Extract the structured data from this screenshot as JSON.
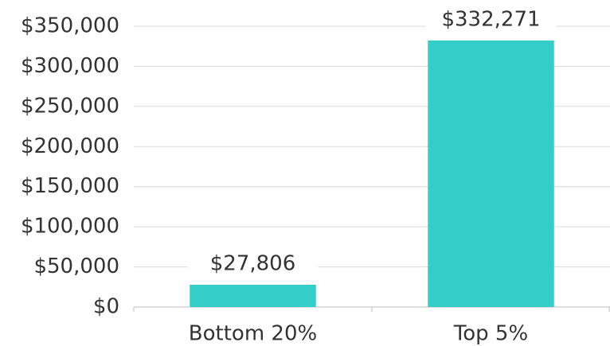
{
  "chart_data": {
    "type": "bar",
    "categories": [
      "Bottom 20%",
      "Top 5%"
    ],
    "values": [
      27806,
      332271
    ],
    "value_labels": [
      "$27,806",
      "$332,271"
    ],
    "color": "#33cec7",
    "ylim": [
      0,
      350000
    ],
    "yticks": [
      {
        "value": 0,
        "label": "$0"
      },
      {
        "value": 50000,
        "label": "$50,000"
      },
      {
        "value": 100000,
        "label": "$100,000"
      },
      {
        "value": 150000,
        "label": "$150,000"
      },
      {
        "value": 200000,
        "label": "$200,000"
      },
      {
        "value": 250000,
        "label": "$250,000"
      },
      {
        "value": 300000,
        "label": "$300,000"
      },
      {
        "value": 350000,
        "label": "$350,000"
      }
    ],
    "grid": true
  }
}
